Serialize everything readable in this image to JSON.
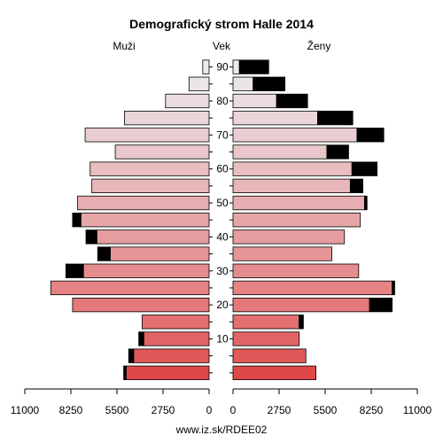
{
  "chart_data": {
    "type": "bar",
    "title": "Demografický strom Halle 2014",
    "left_label": "Muži",
    "center_label": "Vek",
    "right_label": "Ženy",
    "footer": "www.iz.sk/RDEE02",
    "x_max": 11000,
    "x_ticks": [
      0,
      2750,
      5500,
      8250,
      11000
    ],
    "x_tick_labels_left": [
      "11000",
      "8250",
      "5500",
      "2750",
      "0"
    ],
    "x_tick_labels_right": [
      "0",
      "2750",
      "5500",
      "8250",
      "11000"
    ],
    "age_ticks": [
      10,
      20,
      30,
      40,
      50,
      60,
      70,
      80,
      90
    ],
    "age_groups": [
      "0-4",
      "5-9",
      "10-14",
      "15-19",
      "20-24",
      "25-29",
      "30-34",
      "35-39",
      "40-44",
      "45-49",
      "50-54",
      "55-59",
      "60-64",
      "65-69",
      "70-74",
      "75-79",
      "80-84",
      "85-89",
      "90+"
    ],
    "men_base": [
      4950,
      4500,
      3900,
      4000,
      8150,
      9450,
      7500,
      5900,
      6700,
      7650,
      7850,
      7000,
      7100,
      5600,
      7400,
      5050,
      2600,
      1200,
      380
    ],
    "men_extra": [
      150,
      300,
      300,
      0,
      0,
      0,
      1050,
      750,
      650,
      500,
      0,
      0,
      0,
      0,
      0,
      0,
      0,
      0,
      0
    ],
    "women_base": [
      4950,
      4350,
      3950,
      3950,
      8150,
      9500,
      7500,
      5900,
      6650,
      7600,
      7850,
      7000,
      7100,
      5600,
      7400,
      5050,
      2600,
      1200,
      380
    ],
    "women_extra": [
      0,
      0,
      0,
      250,
      1350,
      150,
      0,
      0,
      0,
      0,
      150,
      750,
      1500,
      1300,
      1600,
      2100,
      1850,
      1900,
      1750
    ],
    "colors": {
      "bar_young": "#e04848",
      "bar_old": "#ebebf0",
      "extra": "#000000",
      "outline": "#000000"
    }
  }
}
